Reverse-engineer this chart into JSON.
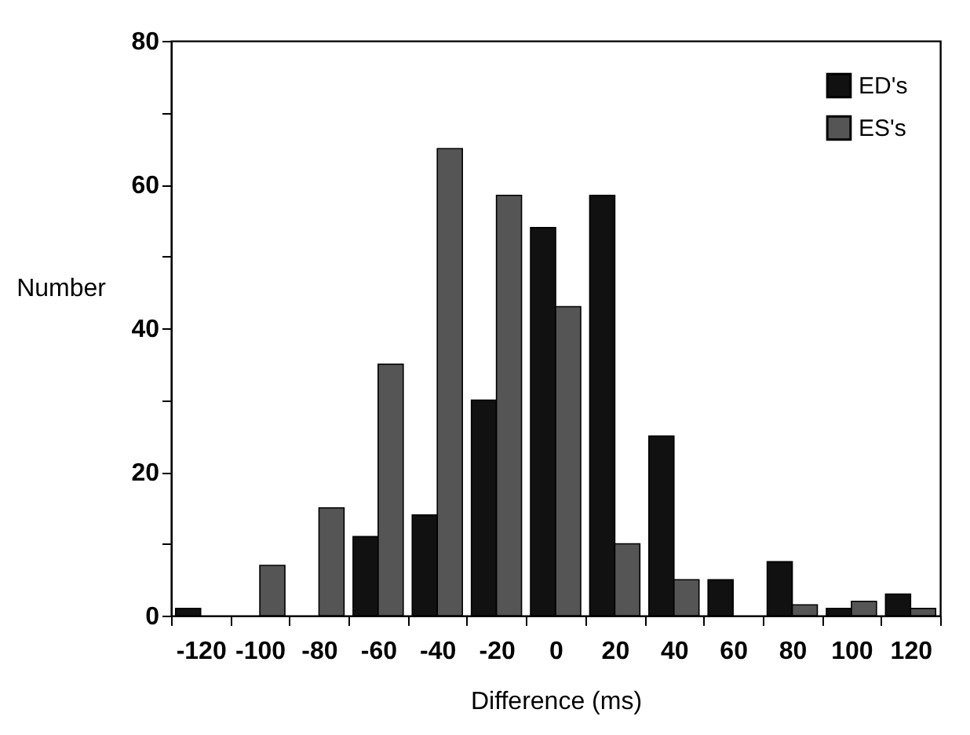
{
  "chart_data": {
    "type": "bar",
    "xlabel": "Difference (ms)",
    "ylabel": "Number",
    "categories": [
      "-120",
      "-100",
      "-80",
      "-60",
      "-40",
      "-20",
      "0",
      "20",
      "40",
      "60",
      "80",
      "100",
      "120"
    ],
    "series": [
      {
        "name": "ED's",
        "color": "#111111",
        "values": [
          1,
          null,
          null,
          11,
          14,
          30,
          54,
          58.5,
          25,
          5,
          7.5,
          1,
          3
        ]
      },
      {
        "name": "ES's",
        "color": "#555555",
        "values": [
          null,
          7,
          15,
          35,
          65,
          58.5,
          43,
          10,
          5,
          null,
          1.5,
          2,
          1
        ]
      }
    ],
    "ylim": [
      0,
      80
    ],
    "yticks": [
      0,
      {
        "value": 10,
        "label": null
      },
      20,
      {
        "value": 30,
        "label": null
      },
      40,
      {
        "value": 50,
        "label": null
      },
      60,
      {
        "value": 70,
        "label": null
      },
      80
    ],
    "grid": false,
    "legend": "top right"
  }
}
